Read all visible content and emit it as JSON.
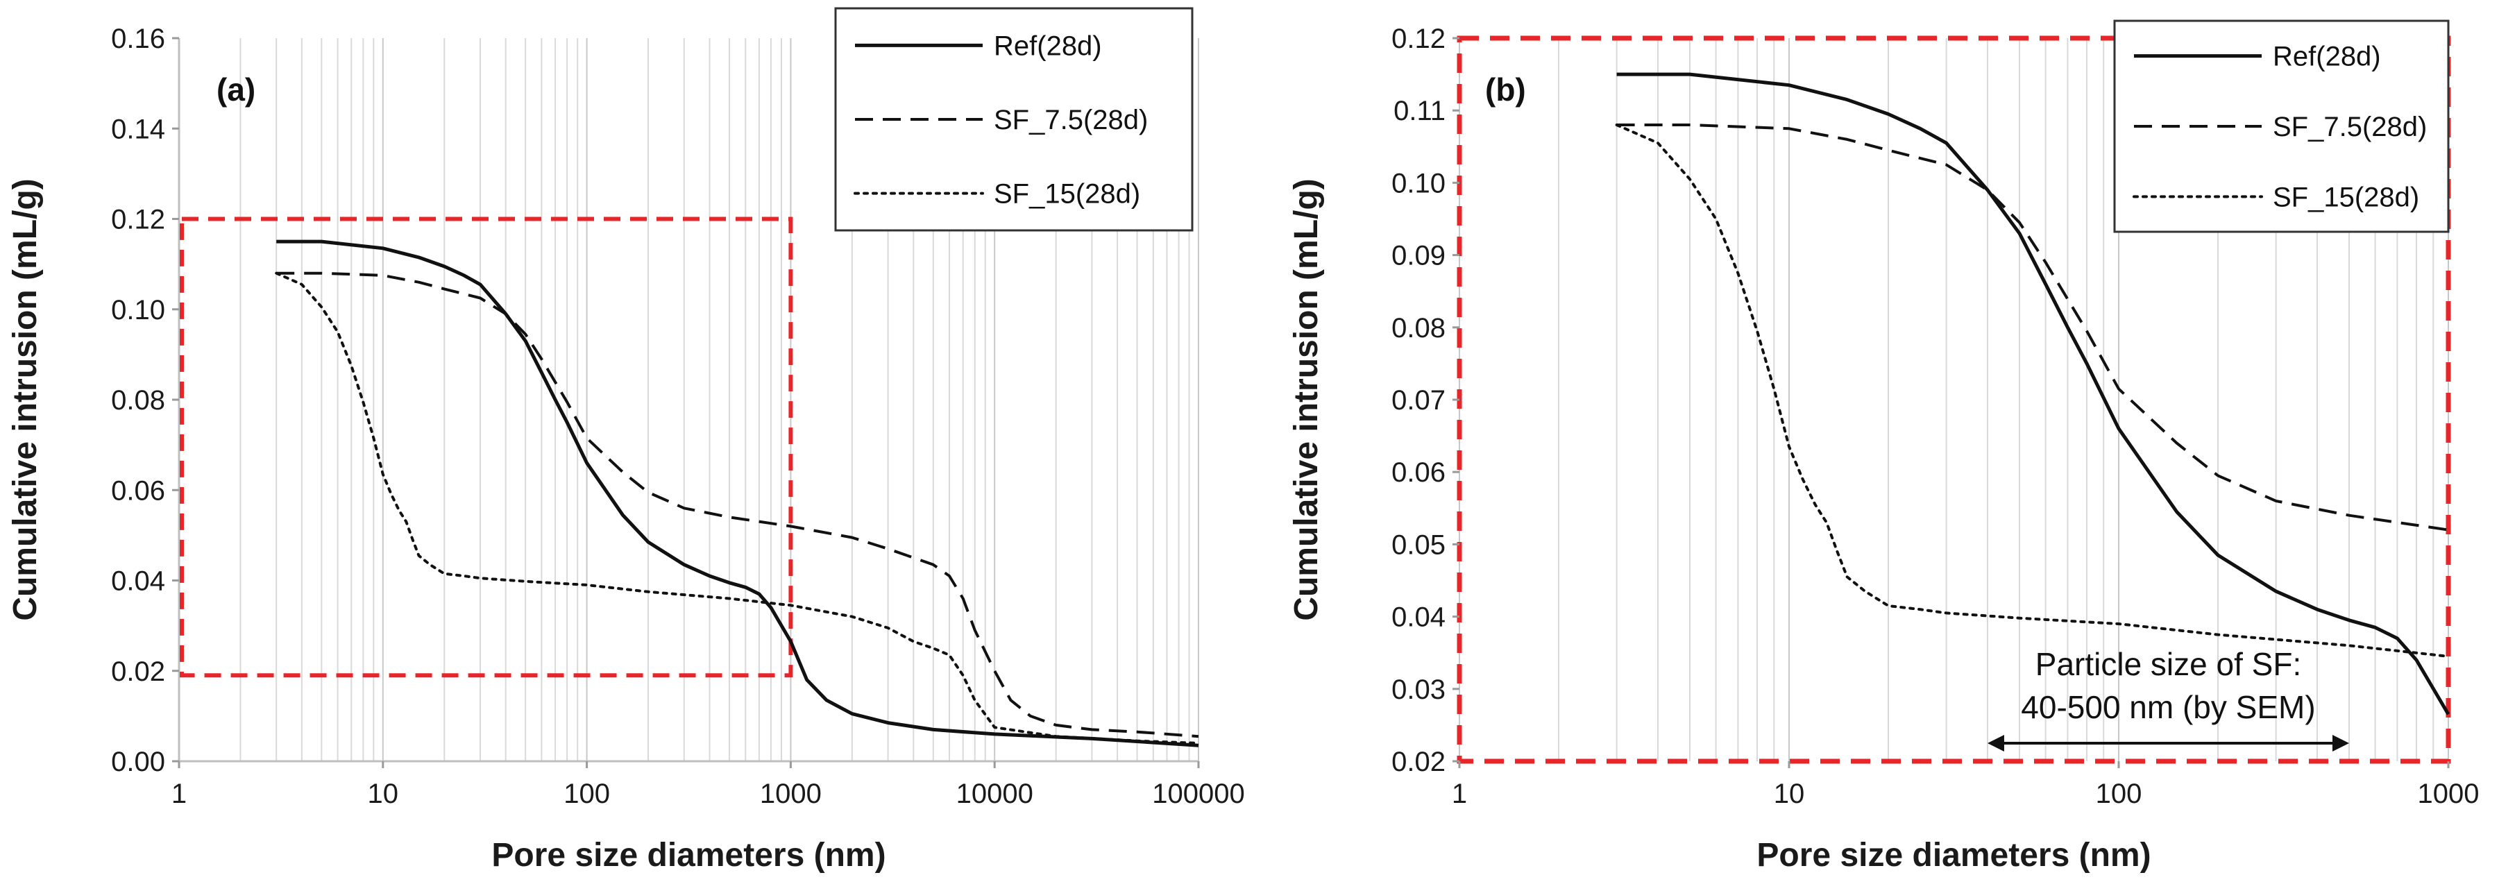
{
  "figure": {
    "xlabel": "Pore size diameters (nm)",
    "ylabel": "Cumulative intrusion (mL/g)"
  },
  "chart_data": [
    {
      "type": "line",
      "panel": "(a)",
      "xscale": "log",
      "xlim": [
        1,
        100000
      ],
      "ylim": [
        0.0,
        0.16
      ],
      "xticks": [
        1,
        10,
        100,
        1000,
        10000,
        100000
      ],
      "xtick_labels": [
        "1",
        "10",
        "100",
        "1000",
        "10000",
        "100000"
      ],
      "yticks": [
        0.0,
        0.02,
        0.04,
        0.06,
        0.08,
        0.1,
        0.12,
        0.14,
        0.16
      ],
      "ytick_labels": [
        "0.00",
        "0.02",
        "0.04",
        "0.06",
        "0.08",
        "0.10",
        "0.12",
        "0.14",
        "0.16"
      ],
      "xlabel": "Pore size diameters (nm)",
      "ylabel": "Cumulative intrusion (mL/g)",
      "grid": "minor vertical lines on log axis",
      "legend_position": "top-right",
      "zoom_box": {
        "x": [
          1,
          1000
        ],
        "y": [
          0.019,
          0.12
        ],
        "color": "#e8262a"
      },
      "series": [
        {
          "name": "Ref(28d)",
          "style": "solid",
          "x": [
            3,
            5,
            10,
            15,
            20,
            25,
            30,
            40,
            50,
            60,
            70,
            80,
            100,
            150,
            200,
            300,
            400,
            500,
            600,
            700,
            800,
            1000,
            1200,
            1500,
            2000,
            3000,
            5000,
            10000,
            30000,
            100000
          ],
          "y": [
            0.115,
            0.115,
            0.1135,
            0.1115,
            0.1095,
            0.1075,
            0.1055,
            0.099,
            0.093,
            0.086,
            0.08,
            0.075,
            0.066,
            0.0545,
            0.0485,
            0.0435,
            0.041,
            0.0395,
            0.0385,
            0.037,
            0.034,
            0.0265,
            0.018,
            0.0135,
            0.0105,
            0.0085,
            0.007,
            0.006,
            0.005,
            0.0035
          ]
        },
        {
          "name": "SF_7.5(28d)",
          "style": "dashed",
          "x": [
            3,
            5,
            10,
            15,
            20,
            30,
            40,
            50,
            60,
            80,
            100,
            150,
            200,
            300,
            500,
            1000,
            2000,
            3000,
            5000,
            6000,
            7000,
            8000,
            10000,
            12000,
            15000,
            20000,
            30000,
            50000,
            100000
          ],
          "y": [
            0.108,
            0.108,
            0.1075,
            0.106,
            0.1045,
            0.1025,
            0.099,
            0.0945,
            0.089,
            0.0795,
            0.0715,
            0.064,
            0.0595,
            0.056,
            0.054,
            0.052,
            0.0495,
            0.047,
            0.0435,
            0.041,
            0.036,
            0.029,
            0.02,
            0.0135,
            0.01,
            0.008,
            0.007,
            0.0065,
            0.0055
          ]
        },
        {
          "name": "SF_15(28d)",
          "style": "dotted",
          "x": [
            3,
            4,
            5,
            6,
            7,
            8,
            9,
            10,
            11,
            12,
            13,
            14,
            15,
            17,
            20,
            25,
            30,
            50,
            100,
            200,
            500,
            1000,
            2000,
            3000,
            4000,
            5000,
            6000,
            7000,
            8000,
            10000,
            20000,
            50000,
            100000
          ],
          "y": [
            0.108,
            0.1055,
            0.1005,
            0.095,
            0.0875,
            0.0795,
            0.0715,
            0.0635,
            0.059,
            0.0555,
            0.053,
            0.049,
            0.0455,
            0.0435,
            0.0415,
            0.041,
            0.0405,
            0.0398,
            0.039,
            0.0375,
            0.036,
            0.0345,
            0.032,
            0.0295,
            0.0265,
            0.025,
            0.0235,
            0.019,
            0.0135,
            0.0075,
            0.0055,
            0.0045,
            0.004
          ]
        }
      ]
    },
    {
      "type": "line",
      "panel": "(b)",
      "xscale": "log",
      "xlim": [
        1,
        1000
      ],
      "ylim": [
        0.02,
        0.12
      ],
      "xticks": [
        1,
        10,
        100,
        1000
      ],
      "xtick_labels": [
        "1",
        "10",
        "100",
        "1000"
      ],
      "yticks": [
        0.02,
        0.03,
        0.04,
        0.05,
        0.06,
        0.07,
        0.08,
        0.09,
        0.1,
        0.11,
        0.12
      ],
      "ytick_labels": [
        "0.02",
        "0.03",
        "0.04",
        "0.05",
        "0.06",
        "0.07",
        "0.08",
        "0.09",
        "0.10",
        "0.11",
        "0.12"
      ],
      "xlabel": "Pore size diameters (nm)",
      "ylabel": "Cumulative intrusion (mL/g)",
      "grid": "minor vertical lines on log axis",
      "legend_position": "top-right",
      "frame_color": "#e8262a",
      "annotation": {
        "line1": "Particle size of SF:",
        "line2": "40-500 nm (by SEM)",
        "range": [
          40,
          500
        ],
        "y": 0.0225
      },
      "series": [
        {
          "name": "Ref(28d)",
          "style": "solid",
          "x": [
            3,
            5,
            10,
            15,
            20,
            25,
            30,
            40,
            50,
            60,
            70,
            80,
            100,
            150,
            200,
            300,
            400,
            500,
            600,
            700,
            800,
            1000
          ],
          "y": [
            0.115,
            0.115,
            0.1135,
            0.1115,
            0.1095,
            0.1075,
            0.1055,
            0.099,
            0.093,
            0.086,
            0.08,
            0.075,
            0.066,
            0.0545,
            0.0485,
            0.0435,
            0.041,
            0.0395,
            0.0385,
            0.037,
            0.034,
            0.0265
          ]
        },
        {
          "name": "SF_7.5(28d)",
          "style": "dashed",
          "x": [
            3,
            5,
            10,
            15,
            20,
            30,
            40,
            50,
            60,
            80,
            100,
            150,
            200,
            300,
            500,
            1000
          ],
          "y": [
            0.108,
            0.108,
            0.1075,
            0.106,
            0.1045,
            0.1025,
            0.099,
            0.0945,
            0.089,
            0.0795,
            0.0715,
            0.064,
            0.0595,
            0.056,
            0.054,
            0.052
          ]
        },
        {
          "name": "SF_15(28d)",
          "style": "dotted",
          "x": [
            3,
            4,
            5,
            6,
            7,
            8,
            9,
            10,
            11,
            12,
            13,
            14,
            15,
            17,
            20,
            25,
            30,
            50,
            100,
            200,
            500,
            1000
          ],
          "y": [
            0.108,
            0.1055,
            0.1005,
            0.095,
            0.0875,
            0.0795,
            0.0715,
            0.0635,
            0.059,
            0.0555,
            0.053,
            0.049,
            0.0455,
            0.0435,
            0.0415,
            0.041,
            0.0405,
            0.0398,
            0.039,
            0.0375,
            0.036,
            0.0345
          ]
        }
      ]
    }
  ]
}
